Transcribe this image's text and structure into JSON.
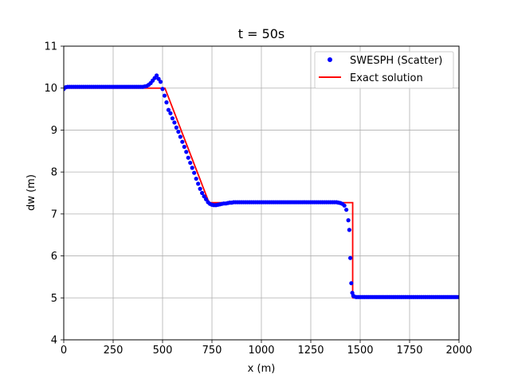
{
  "chart_data": {
    "type": "line",
    "title": "t = 50s",
    "xlabel": "x (m)",
    "ylabel": "dw (m)",
    "xlim": [
      0,
      2000
    ],
    "ylim": [
      4,
      11
    ],
    "xticks": [
      0,
      250,
      500,
      750,
      1000,
      1250,
      1500,
      1750,
      2000
    ],
    "yticks": [
      4,
      5,
      6,
      7,
      8,
      9,
      10,
      11
    ],
    "grid": true,
    "legend_position": "top-right",
    "series": [
      {
        "name": "SWESPH (Scatter)",
        "kind": "scatter",
        "color": "#0000ff",
        "x": [
          0,
          10,
          20,
          30,
          40,
          50,
          60,
          70,
          80,
          90,
          100,
          110,
          120,
          130,
          140,
          150,
          160,
          170,
          180,
          190,
          200,
          210,
          220,
          230,
          240,
          250,
          260,
          270,
          280,
          290,
          300,
          310,
          320,
          330,
          340,
          350,
          360,
          370,
          380,
          390,
          400,
          410,
          420,
          430,
          440,
          450,
          460,
          470,
          480,
          490,
          500,
          510,
          520,
          530,
          540,
          550,
          560,
          570,
          580,
          590,
          600,
          610,
          620,
          630,
          640,
          650,
          660,
          670,
          680,
          690,
          700,
          710,
          720,
          730,
          740,
          750,
          760,
          770,
          780,
          790,
          800,
          810,
          820,
          830,
          840,
          850,
          860,
          870,
          880,
          890,
          900,
          910,
          920,
          930,
          940,
          950,
          960,
          970,
          980,
          990,
          1000,
          1010,
          1020,
          1030,
          1040,
          1050,
          1060,
          1070,
          1080,
          1090,
          1100,
          1110,
          1120,
          1130,
          1140,
          1150,
          1160,
          1170,
          1180,
          1190,
          1200,
          1210,
          1220,
          1230,
          1240,
          1250,
          1260,
          1270,
          1280,
          1290,
          1300,
          1310,
          1320,
          1330,
          1340,
          1350,
          1360,
          1370,
          1380,
          1390,
          1400,
          1410,
          1420,
          1430,
          1440,
          1445,
          1450,
          1455,
          1460,
          1465,
          1470,
          1480,
          1490,
          1500,
          1510,
          1520,
          1530,
          1540,
          1550,
          1560,
          1570,
          1580,
          1590,
          1600,
          1610,
          1620,
          1630,
          1640,
          1650,
          1660,
          1670,
          1680,
          1690,
          1700,
          1710,
          1720,
          1730,
          1740,
          1750,
          1760,
          1770,
          1780,
          1790,
          1800,
          1810,
          1820,
          1830,
          1840,
          1850,
          1860,
          1870,
          1880,
          1890,
          1900,
          1910,
          1920,
          1930,
          1940,
          1950,
          1960,
          1970,
          1980,
          1990,
          2000
        ],
        "y": [
          9.98,
          10.02,
          10.03,
          10.03,
          10.03,
          10.03,
          10.03,
          10.03,
          10.03,
          10.03,
          10.03,
          10.03,
          10.03,
          10.03,
          10.03,
          10.03,
          10.03,
          10.03,
          10.03,
          10.03,
          10.03,
          10.03,
          10.03,
          10.03,
          10.03,
          10.03,
          10.03,
          10.03,
          10.03,
          10.03,
          10.03,
          10.03,
          10.03,
          10.03,
          10.03,
          10.03,
          10.03,
          10.03,
          10.03,
          10.03,
          10.03,
          10.04,
          10.05,
          10.08,
          10.12,
          10.18,
          10.24,
          10.3,
          10.22,
          10.15,
          9.98,
          9.82,
          9.66,
          9.48,
          9.4,
          9.28,
          9.18,
          9.06,
          8.96,
          8.84,
          8.72,
          8.6,
          8.48,
          8.34,
          8.22,
          8.1,
          7.98,
          7.84,
          7.72,
          7.6,
          7.5,
          7.42,
          7.35,
          7.28,
          7.24,
          7.22,
          7.21,
          7.21,
          7.22,
          7.23,
          7.24,
          7.25,
          7.25,
          7.26,
          7.27,
          7.27,
          7.28,
          7.28,
          7.28,
          7.28,
          7.28,
          7.28,
          7.28,
          7.28,
          7.28,
          7.28,
          7.28,
          7.28,
          7.28,
          7.28,
          7.28,
          7.28,
          7.28,
          7.28,
          7.28,
          7.28,
          7.28,
          7.28,
          7.28,
          7.28,
          7.28,
          7.28,
          7.28,
          7.28,
          7.28,
          7.28,
          7.28,
          7.28,
          7.28,
          7.28,
          7.28,
          7.28,
          7.28,
          7.28,
          7.28,
          7.28,
          7.28,
          7.28,
          7.28,
          7.28,
          7.28,
          7.28,
          7.28,
          7.28,
          7.28,
          7.28,
          7.28,
          7.28,
          7.28,
          7.27,
          7.26,
          7.24,
          7.2,
          7.1,
          6.85,
          6.62,
          5.95,
          5.35,
          5.12,
          5.05,
          5.03,
          5.02,
          5.02,
          5.02,
          5.02,
          5.02,
          5.02,
          5.02,
          5.02,
          5.02,
          5.02,
          5.02,
          5.02,
          5.02,
          5.02,
          5.02,
          5.02,
          5.02,
          5.02,
          5.02,
          5.02,
          5.02,
          5.02,
          5.02,
          5.02,
          5.02,
          5.02,
          5.02,
          5.02,
          5.02,
          5.02,
          5.02,
          5.02,
          5.02,
          5.02,
          5.02,
          5.02,
          5.02,
          5.02,
          5.02,
          5.02,
          5.02,
          5.02,
          5.02,
          5.02,
          5.02,
          5.02,
          5.02,
          5.02,
          5.02,
          5.02,
          5.02,
          5.02,
          5.02
        ]
      },
      {
        "name": "Exact solution",
        "kind": "line",
        "color": "#ff0000",
        "x": [
          0,
          512,
          735,
          1462,
          1462,
          2000
        ],
        "y": [
          10.0,
          10.0,
          7.27,
          7.27,
          5.0,
          5.0
        ]
      }
    ]
  }
}
